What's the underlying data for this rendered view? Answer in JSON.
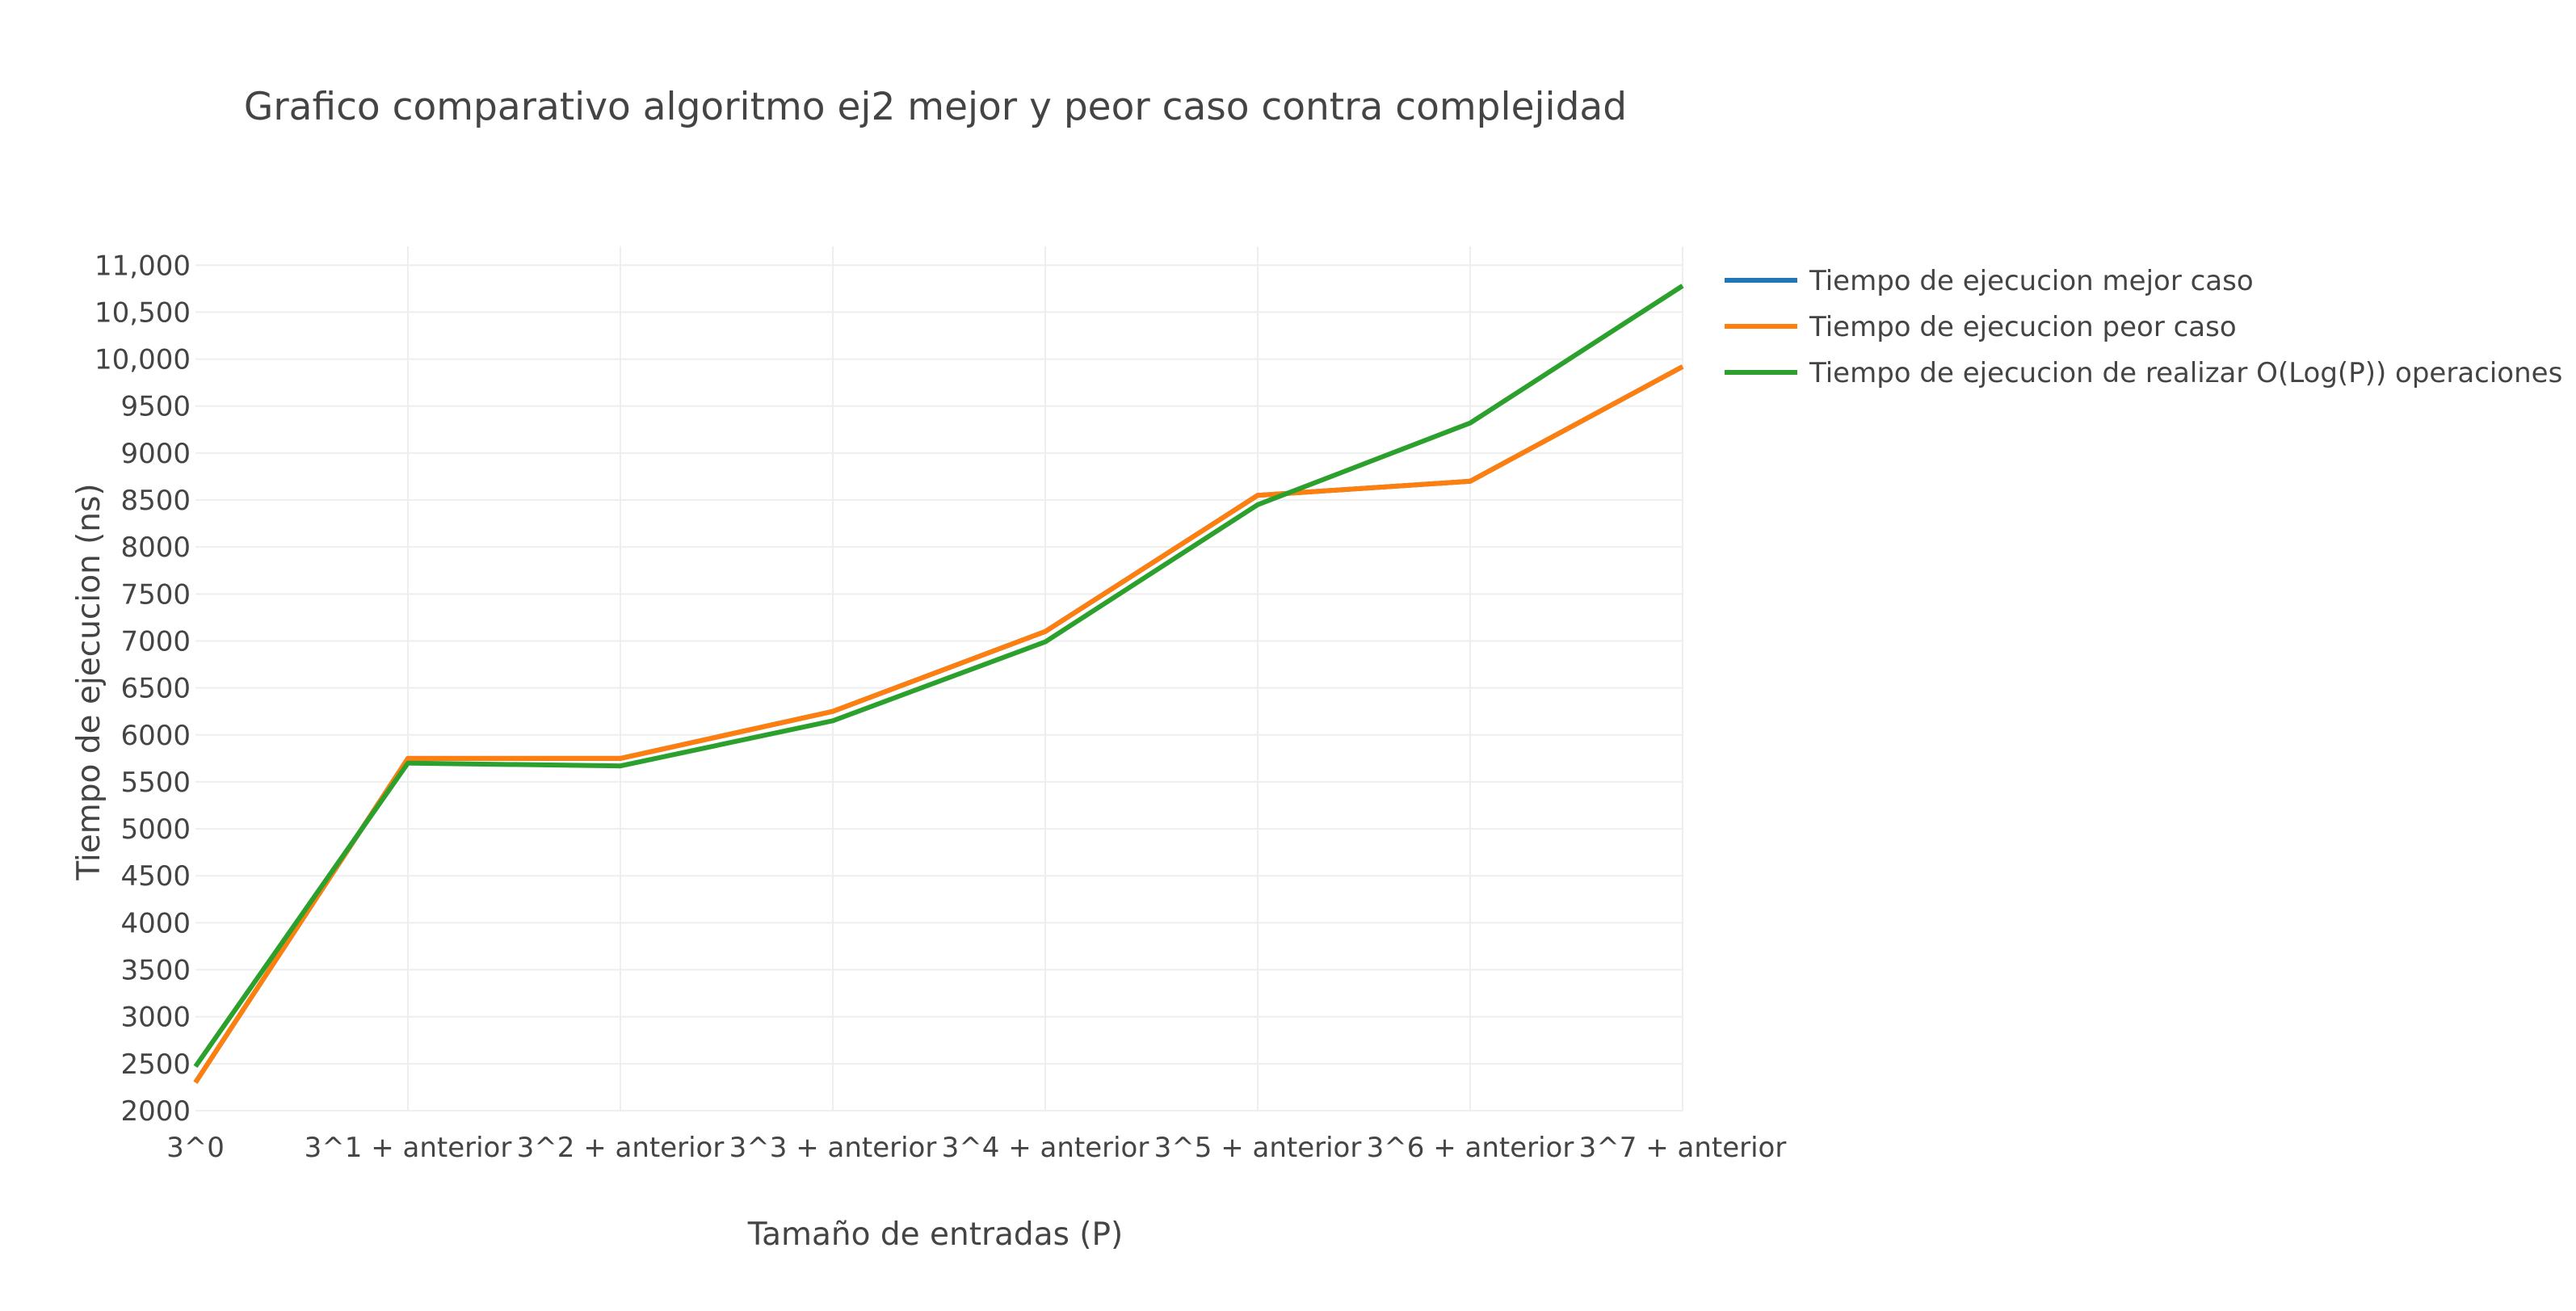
{
  "chart_data": {
    "type": "line",
    "title": "Grafico comparativo algoritmo ej2 mejor y peor caso contra complejidad",
    "xlabel": "Tamaño de entradas (P)",
    "ylabel": "Tiempo de ejecucion (ns)",
    "categories": [
      "3^0",
      "3^1 + anterior",
      "3^2 + anterior",
      "3^3 + anterior",
      "3^4 + anterior",
      "3^5 + anterior",
      "3^6 + anterior",
      "3^7 + anterior"
    ],
    "ylim": [
      2000,
      11200
    ],
    "yticks": [
      {
        "value": 2000,
        "label": "2000"
      },
      {
        "value": 2500,
        "label": "2500"
      },
      {
        "value": 3000,
        "label": "3000"
      },
      {
        "value": 3500,
        "label": "3500"
      },
      {
        "value": 4000,
        "label": "4000"
      },
      {
        "value": 4500,
        "label": "4500"
      },
      {
        "value": 5000,
        "label": "5000"
      },
      {
        "value": 5500,
        "label": "5500"
      },
      {
        "value": 6000,
        "label": "6000"
      },
      {
        "value": 6500,
        "label": "6500"
      },
      {
        "value": 7000,
        "label": "7000"
      },
      {
        "value": 7500,
        "label": "7500"
      },
      {
        "value": 8000,
        "label": "8000"
      },
      {
        "value": 8500,
        "label": "8500"
      },
      {
        "value": 9000,
        "label": "9000"
      },
      {
        "value": 9500,
        "label": "9500"
      },
      {
        "value": 10000,
        "label": "10,000"
      },
      {
        "value": 10500,
        "label": "10,500"
      },
      {
        "value": 11000,
        "label": "11,000"
      }
    ],
    "grid": true,
    "legend_position": "top-right",
    "series": [
      {
        "name": "Tiempo de ejecucion mejor caso",
        "color": "#1f77b4",
        "values": [
          2300,
          5750,
          5750,
          6250,
          7100,
          8550,
          8700,
          9920
        ]
      },
      {
        "name": "Tiempo de ejecucion peor caso",
        "color": "#ff7f0e",
        "values": [
          2300,
          5750,
          5750,
          6250,
          7100,
          8550,
          8700,
          9920
        ]
      },
      {
        "name": "Tiempo de ejecucion de realizar O(Log(P)) operaciones",
        "color": "#2ca02c",
        "values": [
          2470,
          5700,
          5670,
          6150,
          6990,
          8450,
          9320,
          10780
        ]
      }
    ]
  }
}
